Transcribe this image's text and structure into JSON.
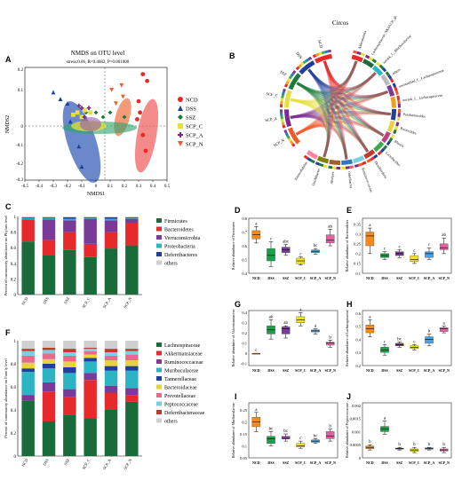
{
  "panel_labels": {
    "A": "A",
    "B": "B",
    "C": "C",
    "D": "D",
    "E": "E",
    "F": "F",
    "G": "G",
    "H": "H",
    "I": "I",
    "J": "J"
  },
  "panel_A": {
    "title": "NMDS on OTU level",
    "stats": "stress:0.06, R=0.4682, P=0.001000",
    "xlabel": "NMDS1",
    "ylabel": "NMDS2",
    "xticks": [
      "-0.5",
      "-0.4",
      "-0.3",
      "-0.2",
      "-0.1",
      "0",
      "0.1",
      "0.2",
      "0.3",
      "0.4",
      "0.5"
    ],
    "yticks": [
      "0.2",
      "0.1",
      "0",
      "-0.1",
      "-0.2",
      "-0.3"
    ],
    "legend": [
      {
        "label": "NCD",
        "color": "#e8292b",
        "shape": "circle"
      },
      {
        "label": "DSS",
        "color": "#1f3f9c",
        "shape": "triangle"
      },
      {
        "label": "SSZ",
        "color": "#1a7a3a",
        "shape": "diamond"
      },
      {
        "label": "SCP_C",
        "color": "#e8e03a",
        "shape": "square"
      },
      {
        "label": "SCP_A",
        "color": "#7a2b8f",
        "shape": "plus"
      },
      {
        "label": "SCP_N",
        "color": "#f05a28",
        "shape": "downtriangle"
      }
    ]
  },
  "panel_B": {
    "title": "Circos",
    "sample_labels": [
      "SCP_N",
      "SCP_A",
      "SCP_C",
      "SSZ",
      "DSS",
      "NCD"
    ],
    "taxa_labels": [
      "Akkermansia",
      "Lachnospiraceae_NK4A136_group",
      "norank_f__Muribaculaceae",
      "others",
      "unclassified_f__Lachnospiraceae",
      "norank_f__Lachnospiraceae",
      "Parabacteroides",
      "Bacteroides",
      "Blautia",
      "Lactobacillus",
      "Desulfovibrio",
      "Ruminococcaceae_UCG-014",
      "Odoribacter",
      "Alistipes",
      "Oscillibacter",
      "Enterorhabdus"
    ]
  },
  "panel_C": {
    "ylabel": "Percent of community abundance on Phylum level",
    "yticks": [
      "1",
      "0.8",
      "0.6",
      "0.4",
      "0.2",
      "0"
    ],
    "legend": [
      {
        "label": "Firmicutes",
        "color": "#1a6b3a"
      },
      {
        "label": "Bacteroidetes",
        "color": "#e8292b"
      },
      {
        "label": "Verrucomicrobia",
        "color": "#7a3a9a"
      },
      {
        "label": "Proteobacteria",
        "color": "#2bb5c4"
      },
      {
        "label": "Deferribacteres",
        "color": "#1f3f9c"
      },
      {
        "label": "others",
        "color": "#cfcfcf"
      }
    ],
    "chart_data": {
      "type": "bar",
      "categories": [
        "NCD",
        "DSS",
        "SSZ",
        "SCP_C",
        "SCP_A",
        "SCP_N"
      ],
      "series": [
        {
          "name": "Firmicutes",
          "values": [
            0.68,
            0.5,
            0.57,
            0.48,
            0.59,
            0.63
          ]
        },
        {
          "name": "Bacteroidetes",
          "values": [
            0.28,
            0.2,
            0.23,
            0.17,
            0.21,
            0.28
          ]
        },
        {
          "name": "Verrucomicrobia",
          "values": [
            0.0,
            0.26,
            0.15,
            0.32,
            0.15,
            0.06
          ]
        },
        {
          "name": "Proteobacteria",
          "values": [
            0.02,
            0.02,
            0.02,
            0.01,
            0.02,
            0.01
          ]
        },
        {
          "name": "Deferribacteres",
          "values": [
            0.01,
            0.01,
            0.02,
            0.01,
            0.02,
            0.01
          ]
        },
        {
          "name": "others",
          "values": [
            0.01,
            0.01,
            0.01,
            0.01,
            0.01,
            0.01
          ]
        }
      ],
      "ylim": [
        0,
        1
      ]
    }
  },
  "panel_F": {
    "ylabel": "Percent of community abundance on Family level",
    "yticks": [
      "1",
      "0.8",
      "0.6",
      "0.4",
      "0.2",
      "0"
    ],
    "legend": [
      {
        "label": "Lachnospiraceae",
        "color": "#1a6b3a"
      },
      {
        "label": "Akkermansiaceae",
        "color": "#e8292b"
      },
      {
        "label": "Ruminococcaceae",
        "color": "#7a3a9a"
      },
      {
        "label": "Muribaculaceae",
        "color": "#2bb5c4"
      },
      {
        "label": "Tannerellaceae",
        "color": "#1f3f9c"
      },
      {
        "label": "Bacteroidaceae",
        "color": "#e8d23a"
      },
      {
        "label": "Prevotellaceae",
        "color": "#e86a8a"
      },
      {
        "label": "Peptococcaceae",
        "color": "#7ad0e0"
      },
      {
        "label": "Deferribacteraceae",
        "color": "#c0392b"
      },
      {
        "label": "others",
        "color": "#cfcfcf"
      }
    ],
    "chart_data": {
      "type": "bar",
      "categories": [
        "NCD",
        "DSS",
        "SSZ",
        "SCP_C",
        "SCP_A",
        "SCP_N"
      ],
      "series": [
        {
          "name": "Lachnospiraceae",
          "values": [
            0.48,
            0.3,
            0.36,
            0.33,
            0.4,
            0.47
          ]
        },
        {
          "name": "Akkermansiaceae",
          "values": [
            0.0,
            0.26,
            0.15,
            0.33,
            0.15,
            0.06
          ]
        },
        {
          "name": "Ruminococcaceae",
          "values": [
            0.05,
            0.08,
            0.07,
            0.06,
            0.06,
            0.06
          ]
        },
        {
          "name": "Muribaculaceae",
          "values": [
            0.2,
            0.12,
            0.14,
            0.1,
            0.13,
            0.15
          ]
        },
        {
          "name": "Tannerellaceae",
          "values": [
            0.03,
            0.04,
            0.05,
            0.03,
            0.04,
            0.04
          ]
        },
        {
          "name": "Bacteroidaceae",
          "values": [
            0.05,
            0.04,
            0.05,
            0.03,
            0.05,
            0.05
          ]
        },
        {
          "name": "Prevotellaceae",
          "values": [
            0.06,
            0.05,
            0.05,
            0.03,
            0.04,
            0.05
          ]
        },
        {
          "name": "Peptococcaceae",
          "values": [
            0.04,
            0.03,
            0.03,
            0.02,
            0.03,
            0.03
          ]
        },
        {
          "name": "Deferribacteraceae",
          "values": [
            0.02,
            0.02,
            0.03,
            0.01,
            0.03,
            0.02
          ]
        },
        {
          "name": "others",
          "values": [
            0.07,
            0.06,
            0.07,
            0.06,
            0.07,
            0.07
          ]
        }
      ],
      "ylim": [
        0,
        1
      ]
    }
  },
  "boxplots": {
    "categories": [
      "NCD",
      "DSS",
      "SSZ",
      "SCP_C",
      "SCP_A",
      "SCP_N"
    ],
    "colors": [
      "#f28a1e",
      "#1aa04a",
      "#7a3a9a",
      "#f2e01e",
      "#4aa0e0",
      "#e060a0"
    ],
    "D": {
      "ylabel": "Relative abundance of Firmicutes",
      "yticks": [
        "0.8",
        "0.7",
        "0.6",
        "0.5",
        "0.4"
      ],
      "ylim": [
        0.4,
        0.8
      ],
      "letters": [
        "a",
        "c",
        "abc",
        "c",
        "bc",
        "ab"
      ],
      "chart_data": {
        "type": "box",
        "values": [
          [
            0.62,
            0.65,
            0.68,
            0.71,
            0.74
          ],
          [
            0.45,
            0.49,
            0.53,
            0.58,
            0.63
          ],
          [
            0.53,
            0.55,
            0.57,
            0.59,
            0.61
          ],
          [
            0.46,
            0.47,
            0.49,
            0.51,
            0.52
          ],
          [
            0.54,
            0.55,
            0.56,
            0.57,
            0.58
          ],
          [
            0.6,
            0.62,
            0.64,
            0.68,
            0.72
          ]
        ]
      }
    },
    "E": {
      "ylabel": "Relative abundance of Bacteroidetes",
      "yticks": [
        "0.35",
        "0.3",
        "0.25",
        "0.2",
        "0.15",
        "0.1"
      ],
      "ylim": [
        0.1,
        0.38
      ],
      "letters": [
        "a",
        "c",
        "c",
        "c",
        "c",
        "ab"
      ],
      "chart_data": {
        "type": "box",
        "values": [
          [
            0.2,
            0.24,
            0.29,
            0.31,
            0.33
          ],
          [
            0.17,
            0.18,
            0.19,
            0.2,
            0.21
          ],
          [
            0.18,
            0.19,
            0.2,
            0.21,
            0.22
          ],
          [
            0.15,
            0.16,
            0.17,
            0.19,
            0.2
          ],
          [
            0.17,
            0.18,
            0.2,
            0.21,
            0.23
          ],
          [
            0.2,
            0.22,
            0.23,
            0.25,
            0.28
          ]
        ]
      }
    },
    "G": {
      "ylabel": "Relative abundance of Akkermansiaceae",
      "yticks": [
        "0.4",
        "0.3",
        "0.2",
        "0.1",
        "0",
        "-0.1"
      ],
      "ylim": [
        -0.12,
        0.42
      ],
      "letters": [
        "c",
        "ab",
        "ab",
        "a",
        "a",
        "b"
      ],
      "chart_data": {
        "type": "box",
        "values": [
          [
            0.0,
            0.0,
            0.0,
            0.0,
            0.0
          ],
          [
            0.14,
            0.19,
            0.23,
            0.27,
            0.33
          ],
          [
            0.15,
            0.19,
            0.24,
            0.26,
            0.27
          ],
          [
            0.27,
            0.3,
            0.33,
            0.36,
            0.4
          ],
          [
            0.19,
            0.21,
            0.22,
            0.23,
            0.24
          ],
          [
            0.06,
            0.08,
            0.1,
            0.11,
            0.13
          ]
        ]
      }
    },
    "H": {
      "ylabel": "Relative abundance of Lachnospiraceae",
      "yticks": [
        "0.6",
        "0.5",
        "0.4",
        "0.3",
        "0.2"
      ],
      "ylim": [
        0.2,
        0.62
      ],
      "letters": [
        "a",
        "c",
        "bc",
        "c",
        "b",
        "a"
      ],
      "chart_data": {
        "type": "box",
        "values": [
          [
            0.42,
            0.45,
            0.48,
            0.51,
            0.55
          ],
          [
            0.28,
            0.3,
            0.32,
            0.34,
            0.36
          ],
          [
            0.34,
            0.35,
            0.36,
            0.37,
            0.38
          ],
          [
            0.32,
            0.33,
            0.34,
            0.35,
            0.36
          ],
          [
            0.35,
            0.37,
            0.4,
            0.42,
            0.44
          ],
          [
            0.45,
            0.46,
            0.48,
            0.49,
            0.5
          ]
        ]
      }
    },
    "I": {
      "ylabel": "Relative abundance of Muribaculaceae",
      "yticks": [
        "0.25",
        "0.2",
        "0.15",
        "0.1",
        "0.05"
      ],
      "ylim": [
        0.05,
        0.28
      ],
      "letters": [
        "a",
        "bc",
        "bc",
        "c",
        "bc",
        "b"
      ],
      "chart_data": {
        "type": "box",
        "values": [
          [
            0.16,
            0.18,
            0.2,
            0.22,
            0.24
          ],
          [
            0.1,
            0.11,
            0.13,
            0.14,
            0.16
          ],
          [
            0.12,
            0.13,
            0.13,
            0.14,
            0.15
          ],
          [
            0.09,
            0.095,
            0.1,
            0.11,
            0.12
          ],
          [
            0.11,
            0.115,
            0.12,
            0.125,
            0.13
          ],
          [
            0.12,
            0.13,
            0.14,
            0.16,
            0.17
          ]
        ]
      }
    },
    "J": {
      "ylabel": "Relative abundance of Peptococcaceae",
      "yticks": [
        "0.002",
        "0.0015",
        "0.001",
        "0.0005",
        "0"
      ],
      "ylim": [
        0,
        0.0021
      ],
      "letters": [
        "b",
        "a",
        "b",
        "b",
        "b",
        "b"
      ],
      "chart_data": {
        "type": "box",
        "values": [
          [
            0.0003,
            0.00035,
            0.0004,
            0.00045,
            0.0005
          ],
          [
            0.0009,
            0.001,
            0.0011,
            0.0012,
            0.0014
          ],
          [
            0.0003,
            0.00033,
            0.00035,
            0.00037,
            0.0004
          ],
          [
            0.0002,
            0.00025,
            0.0003,
            0.00034,
            0.0004
          ],
          [
            0.0003,
            0.00033,
            0.00036,
            0.00038,
            0.0004
          ],
          [
            0.0002,
            0.00026,
            0.0003,
            0.00034,
            0.0004
          ]
        ]
      }
    }
  }
}
